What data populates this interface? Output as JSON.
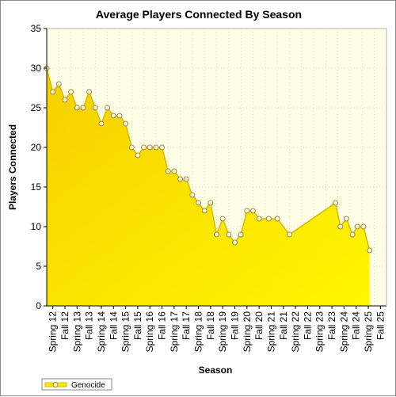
{
  "chart_data": {
    "type": "area",
    "title": "Average Players Connected By Season",
    "xlabel": "Season",
    "ylabel": "Players Connected",
    "ylim": [
      0,
      35
    ],
    "yticks": [
      0,
      5,
      10,
      15,
      20,
      25,
      30,
      35
    ],
    "grid": true,
    "legend_position": "bottom-left",
    "categories": [
      "Spring 12",
      "Fall 12",
      "Spring 13",
      "Fall 13",
      "Spring 14",
      "Fall 14",
      "Spring 15",
      "Fall 15",
      "Spring 16",
      "Fall 16",
      "Spring 17",
      "Fall 17",
      "Spring 18",
      "Fall 18",
      "Spring 19",
      "Fall 19",
      "Spring 20",
      "Fall 20",
      "Spring 21",
      "Fall 21",
      "Spring 22",
      "Fall 22",
      "Spring 23",
      "Fall 23",
      "Spring 24",
      "Fall 24",
      "Spring 25",
      "Fall 25"
    ],
    "series": [
      {
        "name": "Genocide",
        "color": "#ffe800",
        "marker_fill": "#fff8d8",
        "marker_stroke": "#a08c40",
        "points": [
          {
            "x": 0.0,
            "y": 30
          },
          {
            "x": 0.5,
            "y": 27
          },
          {
            "x": 1.0,
            "y": 28
          },
          {
            "x": 1.5,
            "y": 26
          },
          {
            "x": 2.0,
            "y": 27
          },
          {
            "x": 2.5,
            "y": 25
          },
          {
            "x": 3.0,
            "y": 25
          },
          {
            "x": 3.5,
            "y": 27
          },
          {
            "x": 4.0,
            "y": 25
          },
          {
            "x": 4.5,
            "y": 23
          },
          {
            "x": 5.0,
            "y": 25
          },
          {
            "x": 5.5,
            "y": 24
          },
          {
            "x": 6.0,
            "y": 24
          },
          {
            "x": 6.5,
            "y": 23
          },
          {
            "x": 7.0,
            "y": 20
          },
          {
            "x": 7.5,
            "y": 19
          },
          {
            "x": 8.0,
            "y": 20
          },
          {
            "x": 8.5,
            "y": 20
          },
          {
            "x": 9.0,
            "y": 20
          },
          {
            "x": 9.5,
            "y": 20
          },
          {
            "x": 10.0,
            "y": 17
          },
          {
            "x": 10.5,
            "y": 17
          },
          {
            "x": 11.0,
            "y": 16
          },
          {
            "x": 11.5,
            "y": 16
          },
          {
            "x": 12.0,
            "y": 14
          },
          {
            "x": 12.5,
            "y": 13
          },
          {
            "x": 13.0,
            "y": 12
          },
          {
            "x": 13.5,
            "y": 13
          },
          {
            "x": 14.0,
            "y": 9
          },
          {
            "x": 14.5,
            "y": 11
          },
          {
            "x": 15.0,
            "y": 9
          },
          {
            "x": 15.5,
            "y": 8
          },
          {
            "x": 16.0,
            "y": 9
          },
          {
            "x": 16.5,
            "y": 12
          },
          {
            "x": 17.0,
            "y": 12
          },
          {
            "x": 17.5,
            "y": 11
          },
          {
            "x": 18.3,
            "y": 11
          },
          {
            "x": 19.0,
            "y": 11
          },
          {
            "x": 20.0,
            "y": 9
          },
          {
            "x": 23.8,
            "y": 13
          },
          {
            "x": 24.2,
            "y": 10
          },
          {
            "x": 24.7,
            "y": 11
          },
          {
            "x": 25.2,
            "y": 9
          },
          {
            "x": 25.6,
            "y": 10
          },
          {
            "x": 26.1,
            "y": 10
          },
          {
            "x": 26.6,
            "y": 7
          }
        ]
      }
    ]
  }
}
